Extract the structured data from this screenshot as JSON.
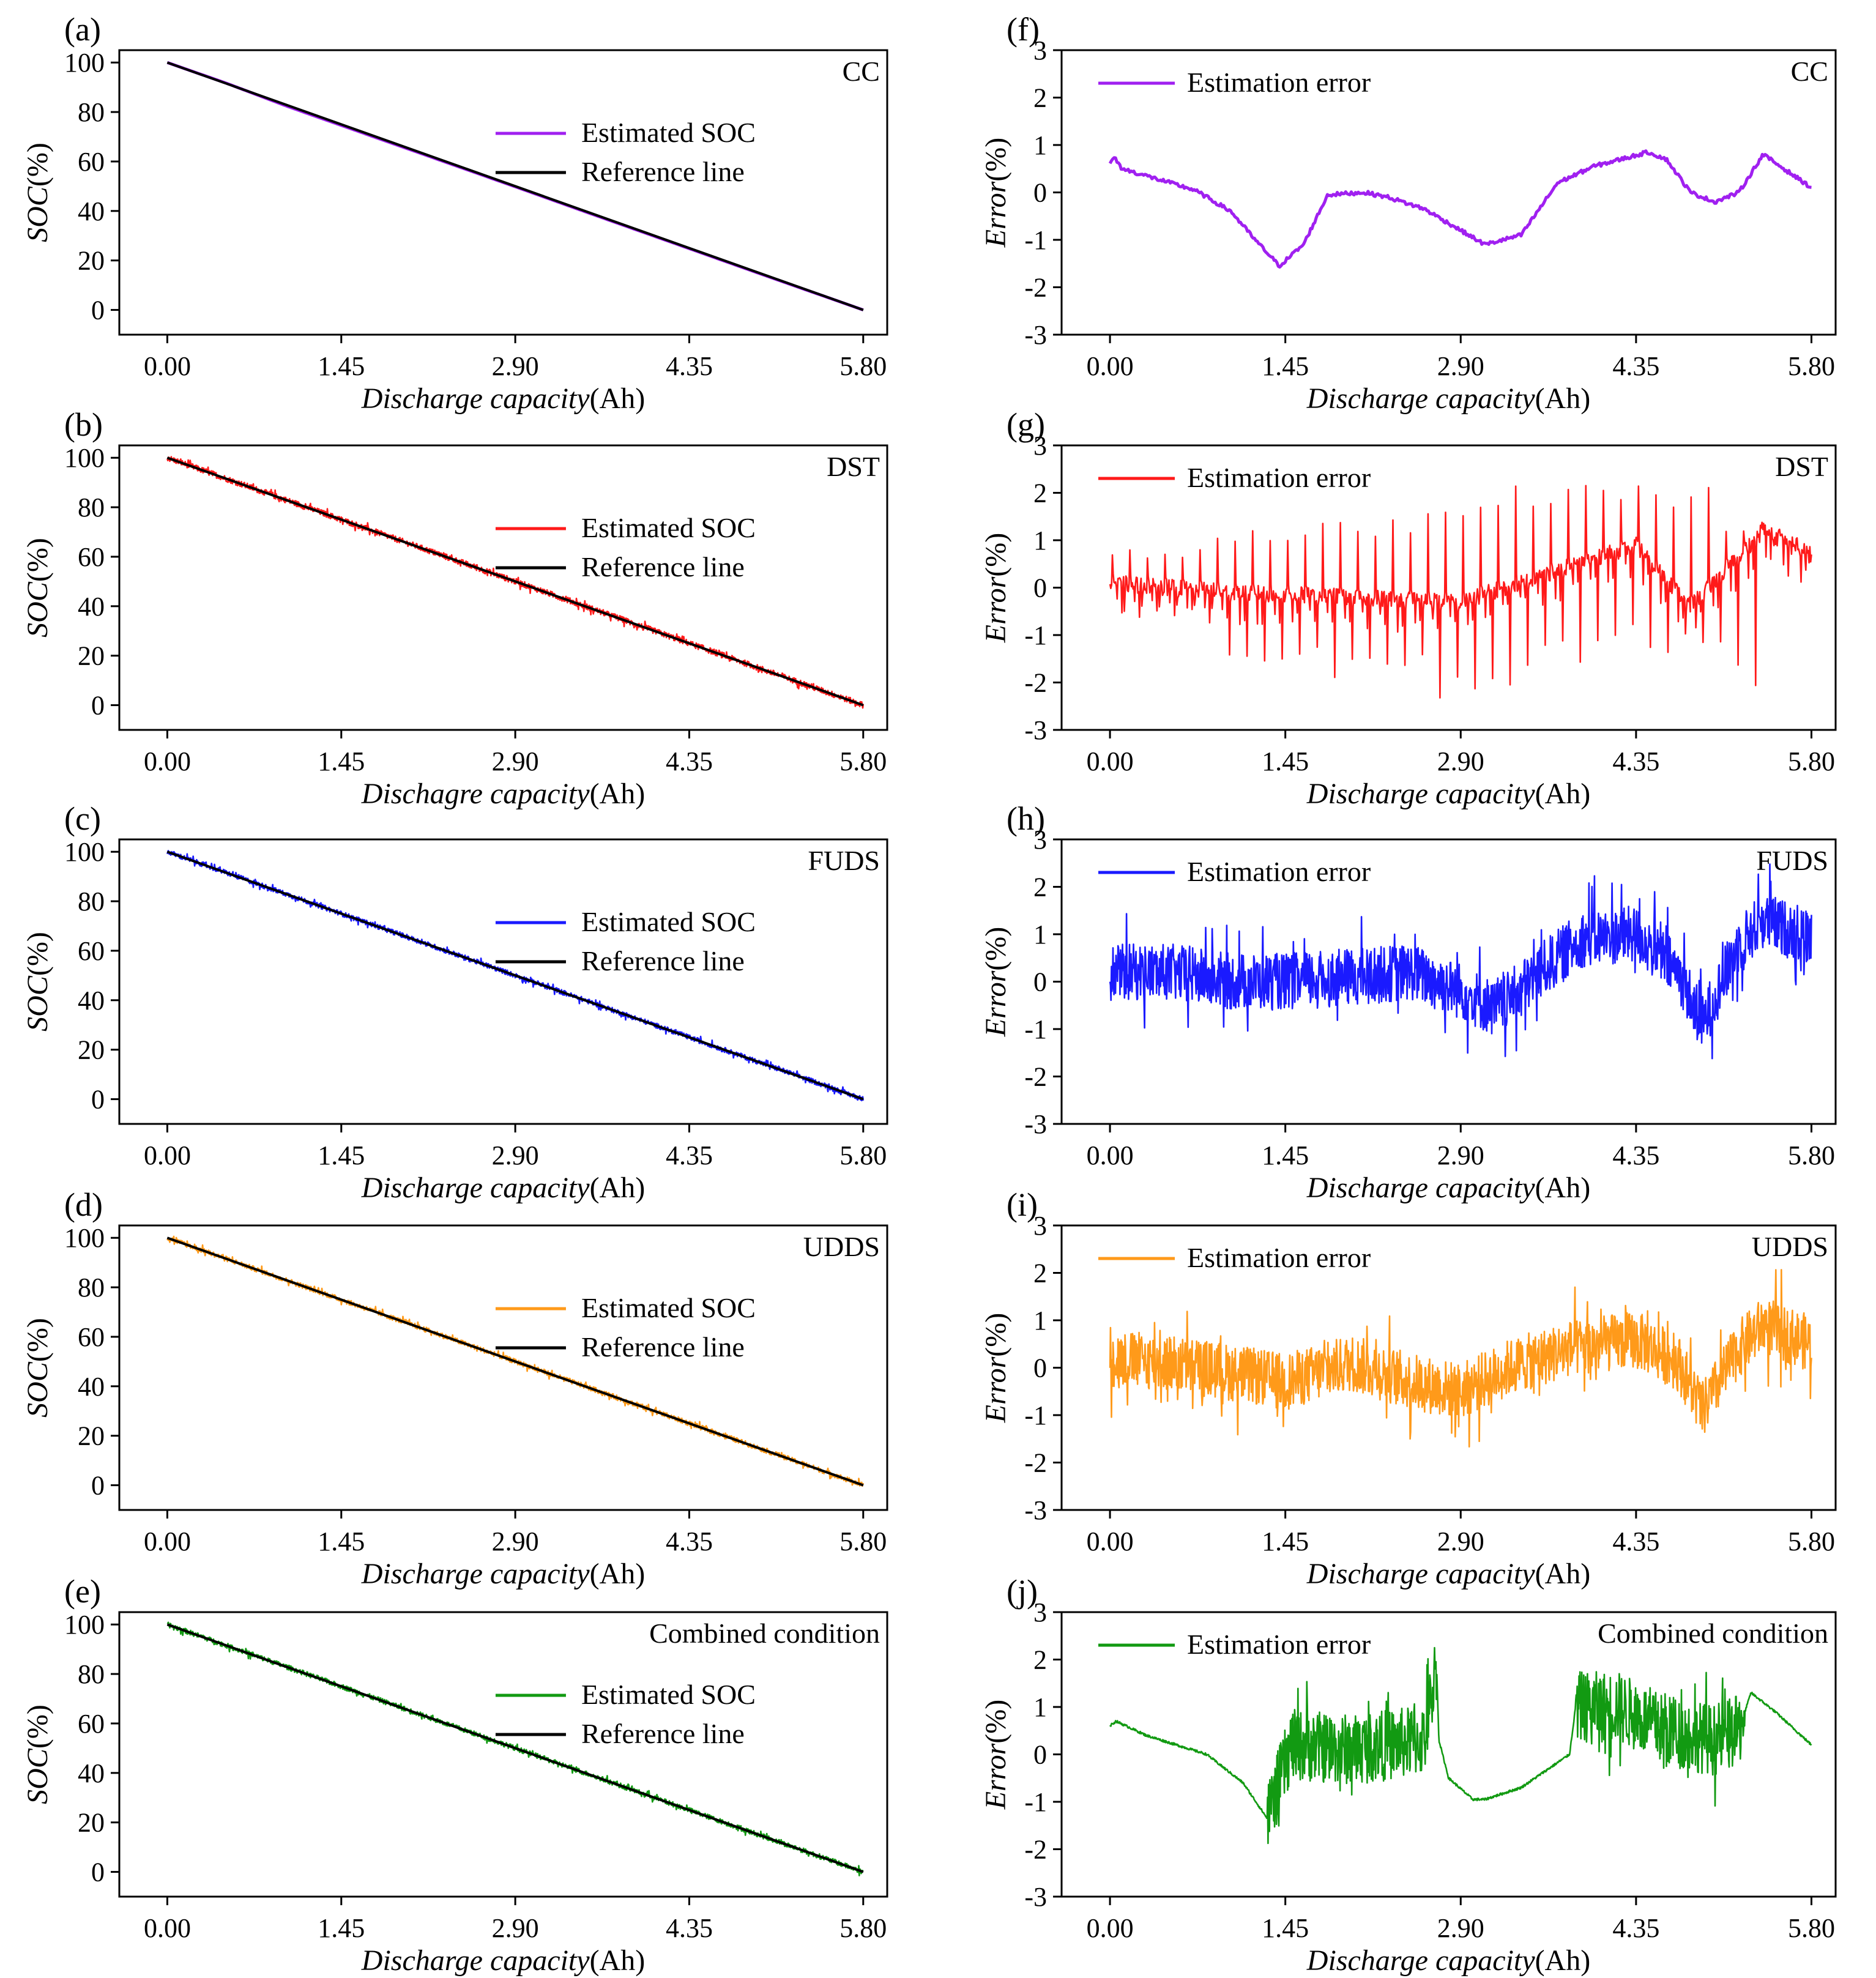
{
  "figure": {
    "panels": [
      {
        "id": "a",
        "letter": "(a)",
        "kind": "soc",
        "condition": "CC",
        "color": "#a020f0",
        "xlabel_italic": "Discharge capacity",
        "xlabel_unit": "(Ah)",
        "ylabel_italic": "SOC",
        "ylabel_unit": "(%)",
        "legend": [
          "Estimated SOC",
          "Reference line"
        ]
      },
      {
        "id": "b",
        "letter": "(b)",
        "kind": "soc",
        "condition": "DST",
        "color": "#ff1a1a",
        "xlabel_italic": "Dischagre capacity",
        "xlabel_unit": "(Ah)",
        "ylabel_italic": "SOC",
        "ylabel_unit": "(%)",
        "legend": [
          "Estimated SOC",
          "Reference line"
        ]
      },
      {
        "id": "c",
        "letter": "(c)",
        "kind": "soc",
        "condition": "FUDS",
        "color": "#1a1aff",
        "xlabel_italic": "Discharge capacity",
        "xlabel_unit": "(Ah)",
        "ylabel_italic": "SOC",
        "ylabel_unit": "(%)",
        "legend": [
          "Estimated SOC",
          "Reference line"
        ]
      },
      {
        "id": "d",
        "letter": "(d)",
        "kind": "soc",
        "condition": "UDDS",
        "color": "#ff9a1a",
        "xlabel_italic": "Discharge capacity",
        "xlabel_unit": "(Ah)",
        "ylabel_italic": "SOC",
        "ylabel_unit": "(%)",
        "legend": [
          "Estimated SOC",
          "Reference line"
        ]
      },
      {
        "id": "e",
        "letter": "(e)",
        "kind": "soc",
        "condition": "Combined condition",
        "color": "#129a12",
        "xlabel_italic": "Discharge capacity",
        "xlabel_unit": "(Ah)",
        "ylabel_italic": "SOC",
        "ylabel_unit": "(%)",
        "legend": [
          "Estimated SOC",
          "Reference line"
        ]
      },
      {
        "id": "f",
        "letter": "(f)",
        "kind": "err",
        "condition": "CC",
        "color": "#a020f0",
        "xlabel_italic": "Discharge capacity",
        "xlabel_unit": "(Ah)",
        "ylabel_italic": "Error",
        "ylabel_unit": "(%)",
        "legend": [
          "Estimation error"
        ]
      },
      {
        "id": "g",
        "letter": "(g)",
        "kind": "err",
        "condition": "DST",
        "color": "#ff1a1a",
        "xlabel_italic": "Discharge capacity",
        "xlabel_unit": "(Ah)",
        "ylabel_italic": "Error",
        "ylabel_unit": "(%)",
        "legend": [
          "Estimation error"
        ]
      },
      {
        "id": "h",
        "letter": "(h)",
        "kind": "err",
        "condition": "FUDS",
        "color": "#1a1aff",
        "xlabel_italic": "Discharge capacity",
        "xlabel_unit": "(Ah)",
        "ylabel_italic": "Error",
        "ylabel_unit": "(%)",
        "legend": [
          "Estimation error"
        ]
      },
      {
        "id": "i",
        "letter": "(i)",
        "kind": "err",
        "condition": "UDDS",
        "color": "#ff9a1a",
        "xlabel_italic": "Discharge capacity",
        "xlabel_unit": "(Ah)",
        "ylabel_italic": "Error",
        "ylabel_unit": "(%)",
        "legend": [
          "Estimation error"
        ]
      },
      {
        "id": "j",
        "letter": "(j)",
        "kind": "err",
        "condition": "Combined condition",
        "color": "#129a12",
        "xlabel_italic": "Discharge capacity",
        "xlabel_unit": "(Ah)",
        "ylabel_italic": "Error",
        "ylabel_unit": "(%)",
        "legend": [
          "Estimation error"
        ]
      }
    ]
  },
  "chart_data": [
    {
      "type": "line",
      "panel": "(a)",
      "title": "CC",
      "xlabel": "Discharge capacity(Ah)",
      "ylabel": "SOC(%)",
      "xlim": [
        -0.4,
        6.0
      ],
      "ylim": [
        -10,
        105
      ],
      "xticks": [
        "0.00",
        "1.45",
        "2.90",
        "4.35",
        "5.80"
      ],
      "yticks": [
        "0",
        "20",
        "40",
        "60",
        "80",
        "100"
      ],
      "series": [
        {
          "name": "Estimated SOC",
          "style": "smooth",
          "x": [
            0,
            0.5,
            1.0,
            1.45,
            2.0,
            2.9,
            3.5,
            4.35,
            5.0,
            5.8
          ],
          "y": [
            100,
            91.5,
            82.3,
            74.6,
            65.2,
            49.8,
            39.4,
            24.8,
            13.6,
            0
          ]
        },
        {
          "name": "Reference line",
          "style": "reference",
          "x": [
            0,
            5.8
          ],
          "y": [
            100,
            0
          ]
        }
      ]
    },
    {
      "type": "line",
      "panel": "(b)",
      "title": "DST",
      "xlabel": "Dischagre capacity(Ah)",
      "ylabel": "SOC(%)",
      "xlim": [
        -0.4,
        6.0
      ],
      "ylim": [
        -10,
        105
      ],
      "xticks": [
        "0.00",
        "1.45",
        "2.90",
        "4.35",
        "5.80"
      ],
      "yticks": [
        "0",
        "20",
        "40",
        "60",
        "80",
        "100"
      ],
      "series": [
        {
          "name": "Estimated SOC",
          "style": "noisy",
          "noise_amp": 1.2,
          "x": [
            0,
            1.45,
            2.9,
            4.35,
            5.8
          ],
          "y": [
            100,
            75,
            50,
            25,
            0
          ]
        },
        {
          "name": "Reference line",
          "style": "reference",
          "x": [
            0,
            5.8
          ],
          "y": [
            100,
            0
          ]
        }
      ]
    },
    {
      "type": "line",
      "panel": "(c)",
      "title": "FUDS",
      "xlabel": "Discharge capacity(Ah)",
      "ylabel": "SOC(%)",
      "xlim": [
        -0.4,
        6.0
      ],
      "ylim": [
        -10,
        105
      ],
      "xticks": [
        "0.00",
        "1.45",
        "2.90",
        "4.35",
        "5.80"
      ],
      "yticks": [
        "0",
        "20",
        "40",
        "60",
        "80",
        "100"
      ],
      "series": [
        {
          "name": "Estimated SOC",
          "style": "noisy",
          "noise_amp": 1.0,
          "x": [
            0,
            1.45,
            2.9,
            4.35,
            5.8
          ],
          "y": [
            100,
            75,
            50,
            25,
            0
          ]
        },
        {
          "name": "Reference line",
          "style": "reference",
          "x": [
            0,
            5.8
          ],
          "y": [
            100,
            0
          ]
        }
      ]
    },
    {
      "type": "line",
      "panel": "(d)",
      "title": "UDDS",
      "xlabel": "Discharge capacity(Ah)",
      "ylabel": "SOC(%)",
      "xlim": [
        -0.4,
        6.0
      ],
      "ylim": [
        -10,
        105
      ],
      "xticks": [
        "0.00",
        "1.45",
        "2.90",
        "4.35",
        "5.80"
      ],
      "yticks": [
        "0",
        "20",
        "40",
        "60",
        "80",
        "100"
      ],
      "series": [
        {
          "name": "Estimated SOC",
          "style": "noisy",
          "noise_amp": 1.0,
          "x": [
            0,
            1.45,
            2.9,
            4.35,
            5.8
          ],
          "y": [
            100,
            75,
            50,
            25,
            0
          ]
        },
        {
          "name": "Reference line",
          "style": "reference",
          "x": [
            0,
            5.8
          ],
          "y": [
            100,
            0
          ]
        }
      ]
    },
    {
      "type": "line",
      "panel": "(e)",
      "title": "Combined condition",
      "xlabel": "Discharge capacity(Ah)",
      "ylabel": "SOC(%)",
      "xlim": [
        -0.4,
        6.0
      ],
      "ylim": [
        -10,
        105
      ],
      "xticks": [
        "0.00",
        "1.45",
        "2.90",
        "4.35",
        "5.80"
      ],
      "yticks": [
        "0",
        "20",
        "40",
        "60",
        "80",
        "100"
      ],
      "series": [
        {
          "name": "Estimated SOC",
          "style": "noisy",
          "noise_amp": 1.0,
          "x": [
            0,
            1.45,
            2.9,
            4.35,
            5.8
          ],
          "y": [
            100,
            75,
            50,
            25,
            0
          ]
        },
        {
          "name": "Reference line",
          "style": "reference",
          "x": [
            0,
            5.8
          ],
          "y": [
            100,
            0
          ]
        }
      ]
    },
    {
      "type": "line",
      "panel": "(f)",
      "title": "CC",
      "xlabel": "Discharge capacity(Ah)",
      "ylabel": "Error(%)",
      "xlim": [
        -0.4,
        6.0
      ],
      "ylim": [
        -3,
        3
      ],
      "xticks": [
        "0.00",
        "1.45",
        "2.90",
        "4.35",
        "5.80"
      ],
      "yticks": [
        "-3",
        "-2",
        "-1",
        "0",
        "1",
        "2",
        "3"
      ],
      "series": [
        {
          "name": "Estimation error",
          "style": "smooth",
          "noise_amp": 0.04,
          "x": [
            0,
            0.03,
            0.1,
            0.3,
            0.7,
            1.0,
            1.2,
            1.4,
            1.6,
            1.8,
            2.1,
            2.3,
            2.6,
            2.9,
            3.1,
            3.4,
            3.7,
            4.0,
            4.3,
            4.45,
            4.6,
            4.8,
            5.0,
            5.2,
            5.4,
            5.8
          ],
          "y": [
            0.6,
            0.75,
            0.5,
            0.35,
            0.05,
            -0.4,
            -1.0,
            -1.55,
            -1.1,
            -0.05,
            0.0,
            -0.1,
            -0.35,
            -0.8,
            -1.1,
            -0.9,
            0.2,
            0.55,
            0.75,
            0.85,
            0.7,
            0.0,
            -0.2,
            0.0,
            0.8,
            0.1
          ]
        }
      ]
    },
    {
      "type": "line",
      "panel": "(g)",
      "title": "DST",
      "xlabel": "Discharge capacity(Ah)",
      "ylabel": "Error(%)",
      "xlim": [
        -0.4,
        6.0
      ],
      "ylim": [
        -3,
        3
      ],
      "xticks": [
        "0.00",
        "1.45",
        "2.90",
        "4.35",
        "5.80"
      ],
      "yticks": [
        "-3",
        "-2",
        "-1",
        "0",
        "1",
        "2",
        "3"
      ],
      "series": [
        {
          "name": "Estimation error",
          "style": "periodic",
          "period": 0.145,
          "x_end": 5.8,
          "x": [
            0,
            1.0,
            2.0,
            2.9,
            3.5,
            4.35,
            4.8,
            5.4,
            5.8
          ],
          "y": [
            0.1,
            -0.1,
            -0.2,
            -0.3,
            0.2,
            0.9,
            -0.4,
            1.2,
            0.7
          ],
          "peaks": [
            0.8,
            1.2,
            1.5,
            1.8,
            2.2,
            2.2,
            1.2
          ],
          "troughs": [
            -0.5,
            -1.6,
            -1.9,
            -2.5,
            -1.7,
            -1.4,
            -2.3
          ]
        }
      ]
    },
    {
      "type": "line",
      "panel": "(h)",
      "title": "FUDS",
      "xlabel": "Discharge capacity(Ah)",
      "ylabel": "Error(%)",
      "xlim": [
        -0.4,
        6.0
      ],
      "ylim": [
        -3,
        3
      ],
      "xticks": [
        "0.00",
        "1.45",
        "2.90",
        "4.35",
        "5.80"
      ],
      "yticks": [
        "-3",
        "-2",
        "-1",
        "0",
        "1",
        "2",
        "3"
      ],
      "series": [
        {
          "name": "Estimation error",
          "style": "noisy",
          "noise_amp": 0.6,
          "x": [
            0,
            0.5,
            1.0,
            1.45,
            2.0,
            2.5,
            2.9,
            3.2,
            3.6,
            3.9,
            4.35,
            4.7,
            4.9,
            5.2,
            5.4,
            5.8
          ],
          "y": [
            0.2,
            0.2,
            0.0,
            0.0,
            0.1,
            0.2,
            -0.2,
            -0.6,
            0.3,
            0.9,
            1.0,
            0.2,
            -0.9,
            0.8,
            1.3,
            0.9
          ]
        }
      ]
    },
    {
      "type": "line",
      "panel": "(i)",
      "title": "UDDS",
      "xlabel": "Discharge capacity(Ah)",
      "ylabel": "Error(%)",
      "xlim": [
        -0.4,
        6.0
      ],
      "ylim": [
        -3,
        3
      ],
      "xticks": [
        "0.00",
        "1.45",
        "2.90",
        "4.35",
        "5.80"
      ],
      "yticks": [
        "-3",
        "-2",
        "-1",
        "0",
        "1",
        "2",
        "3"
      ],
      "series": [
        {
          "name": "Estimation error",
          "style": "noisy",
          "noise_amp": 0.6,
          "x": [
            0,
            0.5,
            1.0,
            1.45,
            2.0,
            2.5,
            2.9,
            3.3,
            3.8,
            4.35,
            4.7,
            4.9,
            5.2,
            5.4,
            5.8
          ],
          "y": [
            0.2,
            0.1,
            -0.1,
            -0.3,
            0.1,
            -0.3,
            -0.5,
            0.0,
            0.4,
            0.6,
            0.1,
            -0.9,
            0.4,
            0.9,
            0.5
          ]
        }
      ]
    },
    {
      "type": "line",
      "panel": "(j)",
      "title": "Combined condition",
      "xlabel": "Discharge capacity(Ah)",
      "ylabel": "Error(%)",
      "xlim": [
        -0.4,
        6.0
      ],
      "ylim": [
        -3,
        3
      ],
      "xticks": [
        "0.00",
        "1.45",
        "2.90",
        "4.35",
        "5.80"
      ],
      "yticks": [
        "-3",
        "-2",
        "-1",
        "0",
        "1",
        "2",
        "3"
      ],
      "series": [
        {
          "name": "Estimation error",
          "style": "segmented",
          "noise_amp": 0.75,
          "x": [
            0,
            0.05,
            0.3,
            0.8,
            1.1,
            1.3,
            1.5,
            2.0,
            2.6,
            2.7,
            2.72,
            2.8,
            3.0,
            3.1,
            3.4,
            3.8,
            3.85,
            4.2,
            4.6,
            5.0,
            5.2,
            5.3,
            5.5,
            5.8
          ],
          "y": [
            0.6,
            0.7,
            0.4,
            0.0,
            -0.6,
            -1.35,
            0.2,
            0.1,
            0.3,
            1.9,
            0.3,
            -0.5,
            -0.95,
            -0.95,
            -0.7,
            0.0,
            1.0,
            1.0,
            0.5,
            0.3,
            0.5,
            1.3,
            0.9,
            0.2
          ],
          "noisy_ranges": [
            [
              1.3,
              2.7
            ],
            [
              3.85,
              5.25
            ]
          ]
        }
      ]
    }
  ]
}
